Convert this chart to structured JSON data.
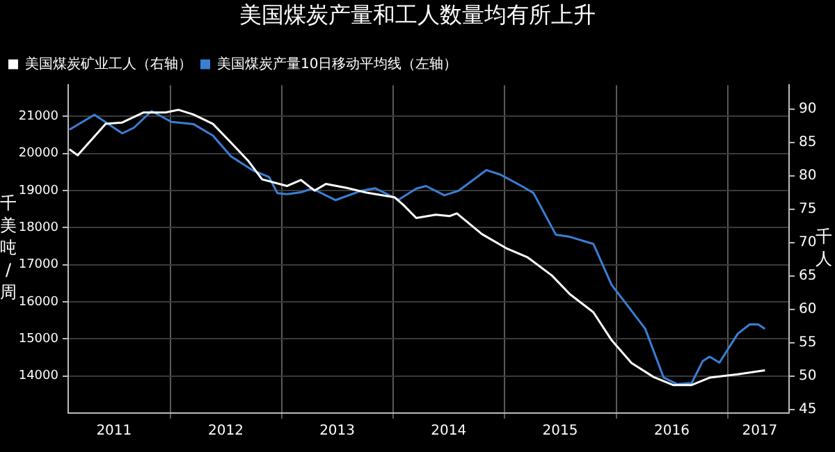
{
  "chart_data": {
    "type": "line",
    "title": "美国煤炭产量和工人数量均有所上升",
    "ylabel": "千美吨/周",
    "y2label": "千人",
    "legend": "top left",
    "grid": true,
    "marker": "none",
    "line_style": "solid",
    "xlim": [
      "2011-02-01",
      "2017-07-20"
    ],
    "xticks": [
      {
        "value": "2011-07-01",
        "label": "2011"
      },
      {
        "value": "2012-01-01",
        "label": null
      },
      {
        "value": "2012-07-01",
        "label": "2012"
      },
      {
        "value": "2013-01-01",
        "label": null
      },
      {
        "value": "2013-07-01",
        "label": "2013"
      },
      {
        "value": "2014-01-01",
        "label": null
      },
      {
        "value": "2014-07-01",
        "label": "2014"
      },
      {
        "value": "2015-01-01",
        "label": null
      },
      {
        "value": "2015-07-01",
        "label": "2015"
      },
      {
        "value": "2016-01-01",
        "label": null
      },
      {
        "value": "2016-07-01",
        "label": "2016"
      },
      {
        "value": "2017-01-01",
        "label": null
      },
      {
        "value": "2017-04-15",
        "label": "2017"
      }
    ],
    "ylim": [
      13000,
      21840
    ],
    "yticks": [
      14000,
      15000,
      16000,
      17000,
      18000,
      19000,
      20000,
      21000
    ],
    "y2lim": [
      44.5,
      93.6
    ],
    "y2ticks": [
      45,
      50,
      55,
      60,
      65,
      70,
      75,
      80,
      85,
      90
    ],
    "series": [
      {
        "name": "美国煤炭矿业工人（右轴）",
        "color": "#ffffff",
        "axis": "y2",
        "x": [
          "2011-02-05",
          "2011-03-04",
          "2011-06-04",
          "2011-07-28",
          "2011-10-05",
          "2011-12-17",
          "2012-01-28",
          "2012-03-17",
          "2012-05-20",
          "2012-07-18",
          "2012-09-12",
          "2012-10-28",
          "2013-01-18",
          "2013-03-04",
          "2013-04-18",
          "2013-05-25",
          "2013-08-02",
          "2013-10-05",
          "2014-01-05",
          "2014-02-02",
          "2014-03-17",
          "2014-05-20",
          "2014-07-05",
          "2014-07-28",
          "2014-10-18",
          "2015-01-05",
          "2015-03-17",
          "2015-06-04",
          "2015-08-02",
          "2015-10-18",
          "2015-12-17",
          "2016-02-20",
          "2016-05-02",
          "2016-07-05",
          "2016-09-04",
          "2016-11-02",
          "2017-02-02",
          "2017-05-02"
        ],
        "values": [
          84.0,
          83.1,
          87.8,
          88.0,
          89.5,
          89.5,
          89.9,
          89.2,
          87.8,
          85.0,
          82.3,
          79.5,
          78.5,
          79.4,
          77.8,
          78.8,
          78.2,
          77.5,
          76.8,
          75.7,
          73.7,
          74.2,
          74.0,
          74.4,
          71.3,
          69.2,
          67.8,
          65.1,
          62.3,
          59.6,
          55.4,
          52.0,
          49.9,
          48.7,
          48.7,
          49.8,
          50.3,
          50.9
        ]
      },
      {
        "name": "美国煤炭产量10日移动平均线（左轴）",
        "color": "#3a7fd5",
        "axis": "y",
        "x": [
          "2011-02-05",
          "2011-04-28",
          "2011-07-28",
          "2011-09-04",
          "2011-11-01",
          "2012-01-05",
          "2012-03-17",
          "2012-05-20",
          "2012-07-18",
          "2012-09-26",
          "2012-11-20",
          "2012-12-17",
          "2013-01-18",
          "2013-03-04",
          "2013-04-10",
          "2013-06-26",
          "2013-09-17",
          "2013-11-02",
          "2014-01-18",
          "2014-03-17",
          "2014-04-18",
          "2014-06-17",
          "2014-08-02",
          "2014-11-02",
          "2014-12-17",
          "2015-02-25",
          "2015-04-05",
          "2015-06-17",
          "2015-08-02",
          "2015-10-18",
          "2015-12-17",
          "2016-02-02",
          "2016-04-05",
          "2016-06-04",
          "2016-07-18",
          "2016-09-04",
          "2016-10-10",
          "2016-11-02",
          "2016-12-04",
          "2017-02-02",
          "2017-03-13",
          "2017-04-10",
          "2017-05-02"
        ],
        "values": [
          20640,
          21040,
          20540,
          20690,
          21140,
          20850,
          20790,
          20480,
          19920,
          19550,
          19360,
          18930,
          18900,
          18950,
          19050,
          18740,
          18990,
          19060,
          18750,
          19050,
          19120,
          18870,
          18990,
          19550,
          19430,
          19120,
          18930,
          17810,
          17750,
          17560,
          16450,
          15950,
          15270,
          13960,
          13780,
          13810,
          14400,
          14520,
          14360,
          15140,
          15390,
          15390,
          15270
        ]
      }
    ]
  }
}
